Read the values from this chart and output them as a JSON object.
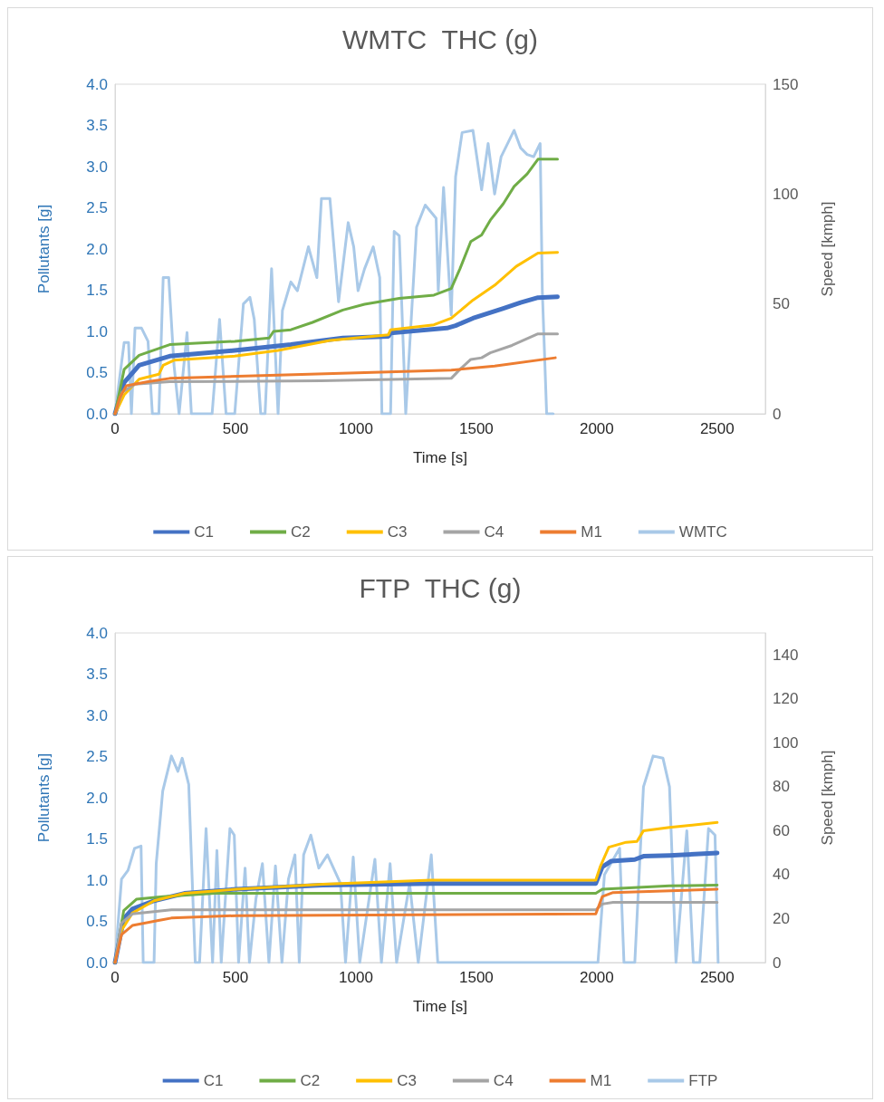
{
  "chart_data": [
    {
      "type": "line",
      "title": "WMTC  THC (g)",
      "xlabel": "Time [s]",
      "ylabel": "Pollutants [g]",
      "y2label": "Speed [kmph]",
      "xlim": [
        0,
        2700
      ],
      "xticks": [
        0,
        500,
        1000,
        1500,
        2000,
        2500
      ],
      "ylim": [
        0,
        4
      ],
      "yticks": [
        {
          "value": 0,
          "label": "0.0"
        },
        {
          "value": 0.5,
          "label": "0.5"
        },
        {
          "value": 1,
          "label": "1.0"
        },
        {
          "value": 1.5,
          "label": "1.5"
        },
        {
          "value": 2,
          "label": "2.0"
        },
        {
          "value": 2.5,
          "label": "2.5"
        },
        {
          "value": 3,
          "label": "3.0"
        },
        {
          "value": 3.5,
          "label": "3.5"
        },
        {
          "value": 4,
          "label": "4.0"
        }
      ],
      "y2lim": [
        0,
        150
      ],
      "y2ticks": [
        0,
        50,
        100,
        150
      ],
      "grid": false,
      "legend": "bottom",
      "marker": "none",
      "line_style": "solid",
      "series": [
        {
          "name": "C1",
          "color": "#4472c4",
          "x": [
            0,
            38,
            100,
            227,
            497,
            730,
            946,
            1135,
            1144,
            1378,
            1414,
            1486,
            1612,
            1684,
            1756,
            1837
          ],
          "values": [
            0,
            0.38,
            0.59,
            0.7,
            0.77,
            0.84,
            0.92,
            0.94,
            0.98,
            1.04,
            1.07,
            1.16,
            1.28,
            1.35,
            1.41,
            1.42
          ]
        },
        {
          "name": "C2",
          "color": "#70ad47",
          "x": [
            0,
            38,
            100,
            227,
            497,
            640,
            658,
            730,
            820,
            946,
            1036,
            1180,
            1324,
            1396,
            1432,
            1477,
            1522,
            1558,
            1612,
            1657,
            1711,
            1756,
            1837
          ],
          "values": [
            0,
            0.54,
            0.71,
            0.84,
            0.88,
            0.92,
            1.0,
            1.02,
            1.11,
            1.26,
            1.33,
            1.4,
            1.44,
            1.52,
            1.76,
            2.09,
            2.17,
            2.35,
            2.55,
            2.76,
            2.91,
            3.09,
            3.09
          ]
        },
        {
          "name": "C3",
          "color": "#ffc000",
          "x": [
            0,
            38,
            100,
            182,
            200,
            245,
            497,
            677,
            892,
            1135,
            1144,
            1324,
            1396,
            1486,
            1576,
            1666,
            1756,
            1837
          ],
          "values": [
            0,
            0.23,
            0.42,
            0.48,
            0.59,
            0.65,
            0.7,
            0.77,
            0.89,
            0.96,
            1.02,
            1.08,
            1.16,
            1.38,
            1.56,
            1.79,
            1.95,
            1.96
          ]
        },
        {
          "name": "C4",
          "color": "#a5a5a5",
          "x": [
            0,
            29,
            83,
            227,
            856,
            1396,
            1432,
            1477,
            1522,
            1558,
            1648,
            1756,
            1837
          ],
          "values": [
            0,
            0.26,
            0.36,
            0.39,
            0.4,
            0.43,
            0.54,
            0.66,
            0.68,
            0.74,
            0.83,
            0.97,
            0.97
          ]
        },
        {
          "name": "M1",
          "color": "#ed7d31",
          "x": [
            0,
            20,
            47,
            137,
            227,
            677,
            1396,
            1576,
            1828
          ],
          "values": [
            0,
            0.2,
            0.34,
            0.39,
            0.43,
            0.47,
            0.53,
            0.58,
            0.68
          ]
        },
        {
          "name": "WMTC",
          "color": "#a9c9e8",
          "axis": "y2",
          "x": [
            0,
            38,
            56,
            68,
            83,
            110,
            137,
            155,
            182,
            200,
            223,
            245,
            266,
            299,
            317,
            403,
            434,
            461,
            497,
            533,
            560,
            578,
            605,
            623,
            650,
            677,
            695,
            730,
            757,
            803,
            838,
            857,
            892,
            928,
            968,
            991,
            1009,
            1036,
            1072,
            1099,
            1108,
            1144,
            1159,
            1180,
            1207,
            1252,
            1288,
            1333,
            1342,
            1364,
            1396,
            1414,
            1441,
            1486,
            1522,
            1549,
            1576,
            1603,
            1657,
            1684,
            1711,
            1738,
            1765,
            1774,
            1792,
            1819
          ],
          "values": [
            0,
            32.5,
            32.5,
            0,
            39,
            39,
            33,
            0,
            0,
            62,
            62,
            22,
            0,
            37,
            0,
            0,
            43,
            0,
            0,
            50,
            53,
            43,
            0,
            0,
            66,
            0,
            47,
            60,
            56,
            76,
            62,
            98,
            98,
            51,
            87,
            76,
            56,
            66,
            76,
            62,
            0,
            0,
            83,
            81,
            0,
            85,
            95,
            89,
            56,
            103,
            45,
            108,
            128,
            129,
            102,
            123,
            100,
            117,
            129,
            121,
            118,
            117,
            123,
            56,
            0,
            0
          ]
        }
      ]
    },
    {
      "type": "line",
      "title": "FTP  THC (g)",
      "xlabel": "Time [s]",
      "ylabel": "Pollutants [g]",
      "y2label": "Speed [kmph]",
      "xlim": [
        0,
        2700
      ],
      "xticks": [
        0,
        500,
        1000,
        1500,
        2000,
        2500
      ],
      "ylim": [
        0,
        4
      ],
      "yticks": [
        {
          "value": 0,
          "label": "0.0"
        },
        {
          "value": 0.5,
          "label": "0.5"
        },
        {
          "value": 1,
          "label": "1.0"
        },
        {
          "value": 1.5,
          "label": "1.5"
        },
        {
          "value": 2,
          "label": "2.0"
        },
        {
          "value": 2.5,
          "label": "2.5"
        },
        {
          "value": 3,
          "label": "3.0"
        },
        {
          "value": 3.5,
          "label": "3.5"
        },
        {
          "value": 4,
          "label": "4.0"
        }
      ],
      "y2lim": [
        0,
        150
      ],
      "y2ticks": [
        0,
        20,
        40,
        60,
        80,
        100,
        120,
        140
      ],
      "grid": false,
      "legend": "bottom",
      "marker": "none",
      "line_style": "solid",
      "series": [
        {
          "name": "C1",
          "color": "#4472c4",
          "x": [
            0,
            36,
            72,
            162,
            288,
            504,
            863,
            1313,
            1996,
            2023,
            2059,
            2158,
            2194,
            2302,
            2500
          ],
          "values": [
            0,
            0.53,
            0.65,
            0.75,
            0.84,
            0.89,
            0.94,
            0.96,
            0.96,
            1.16,
            1.23,
            1.25,
            1.29,
            1.3,
            1.33
          ]
        },
        {
          "name": "C2",
          "color": "#70ad47",
          "x": [
            0,
            36,
            90,
            198,
            414,
            1996,
            2023,
            2302,
            2500
          ],
          "values": [
            0,
            0.63,
            0.77,
            0.8,
            0.84,
            0.84,
            0.89,
            0.93,
            0.94
          ]
        },
        {
          "name": "C3",
          "color": "#ffc000",
          "x": [
            0,
            27,
            72,
            162,
            288,
            504,
            863,
            1313,
            1996,
            2014,
            2050,
            2122,
            2167,
            2194,
            2302,
            2500
          ],
          "values": [
            0,
            0.39,
            0.6,
            0.75,
            0.84,
            0.89,
            0.95,
            1.0,
            1.0,
            1.16,
            1.4,
            1.46,
            1.47,
            1.6,
            1.64,
            1.7
          ]
        },
        {
          "name": "C4",
          "color": "#a5a5a5",
          "x": [
            0,
            27,
            72,
            234,
            1996,
            2023,
            2068,
            2500
          ],
          "values": [
            0,
            0.48,
            0.59,
            0.64,
            0.64,
            0.71,
            0.73,
            0.73
          ]
        },
        {
          "name": "M1",
          "color": "#ed7d31",
          "x": [
            0,
            27,
            72,
            180,
            234,
            504,
            1996,
            2023,
            2068,
            2500
          ],
          "values": [
            0,
            0.34,
            0.45,
            0.51,
            0.54,
            0.57,
            0.59,
            0.8,
            0.85,
            0.89
          ]
        },
        {
          "name": "FTP",
          "color": "#a9c9e8",
          "axis": "y2",
          "x": [
            0,
            27,
            54,
            81,
            108,
            117,
            162,
            171,
            198,
            234,
            261,
            279,
            306,
            333,
            351,
            378,
            405,
            423,
            441,
            477,
            495,
            513,
            540,
            558,
            585,
            612,
            639,
            666,
            693,
            720,
            747,
            765,
            783,
            813,
            846,
            882,
            936,
            957,
            989,
            1016,
            1079,
            1106,
            1142,
            1169,
            1223,
            1259,
            1313,
            1340,
            1385,
            2005,
            2032,
            2095,
            2113,
            2158,
            2194,
            2234,
            2275,
            2302,
            2329,
            2374,
            2401,
            2428,
            2464,
            2491,
            2504
          ],
          "values": [
            0,
            38,
            42,
            52,
            53,
            0,
            0,
            45,
            78,
            94,
            87,
            93,
            81,
            0,
            0,
            61,
            0,
            51,
            0,
            61,
            58,
            0,
            43,
            0,
            29,
            45,
            0,
            44,
            0,
            38,
            49,
            0,
            49,
            58,
            43,
            49,
            36,
            0,
            48,
            0,
            47,
            0,
            45,
            0,
            36,
            0,
            49,
            0,
            0,
            0,
            40,
            52,
            0,
            0,
            80,
            94,
            93,
            80,
            0,
            60,
            0,
            0,
            61,
            58,
            0
          ]
        }
      ]
    }
  ]
}
